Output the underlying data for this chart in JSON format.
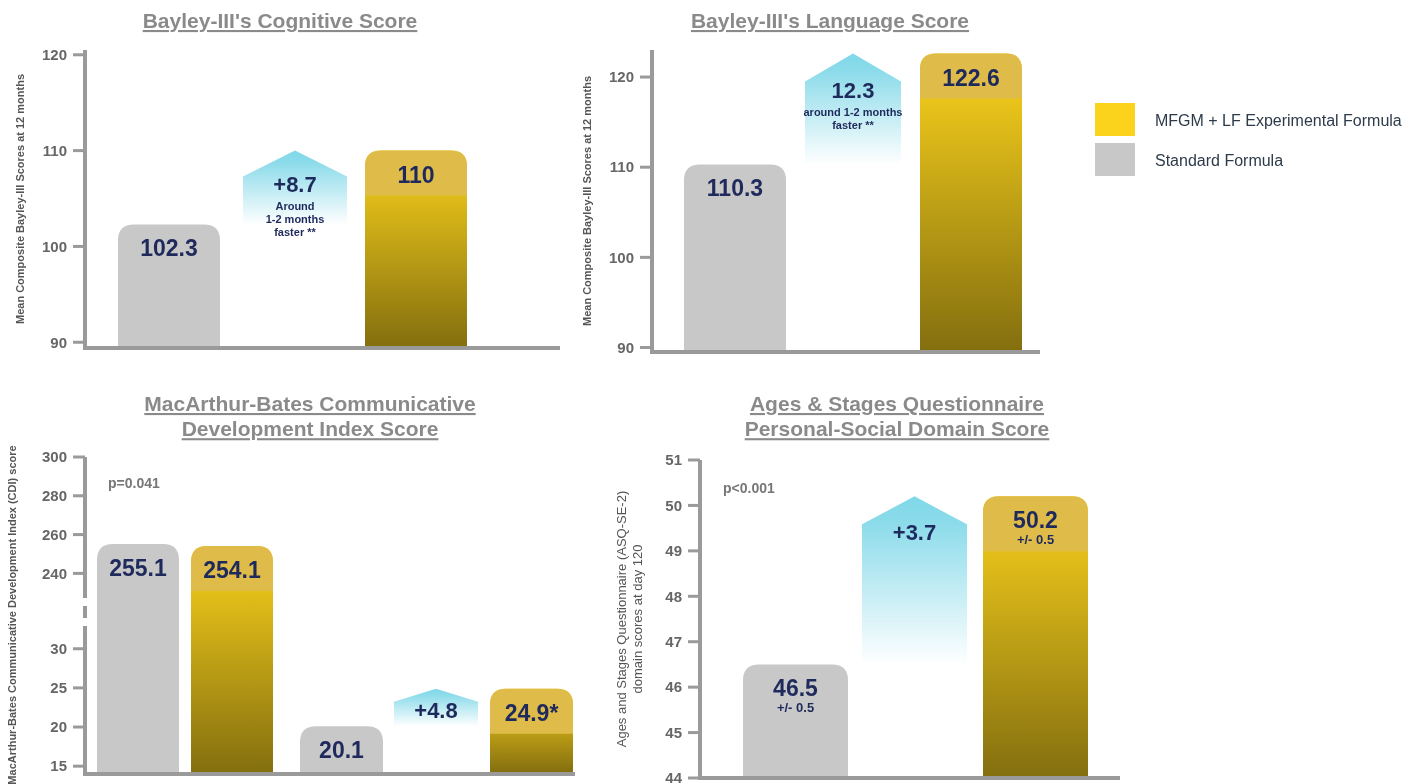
{
  "chart_data": [
    {
      "type": "bar",
      "title": "Bayley-III's Cognitive Score",
      "ylabel": "Mean Composite Bayley-III Scores at 12 months",
      "categories": [
        null
      ],
      "ylim": [
        89.4,
        120.5
      ],
      "yticks": [
        90,
        100,
        110,
        120
      ],
      "data_labels": true,
      "series": [
        {
          "color": "#c8c8c8",
          "values": [
            102.3
          ]
        },
        {
          "color": "#fbd31c",
          "values": [
            110
          ]
        }
      ],
      "annotations": [
        "+8.7",
        "Around\n1-2 months\nfaster **"
      ]
    },
    {
      "type": "bar",
      "title": "Bayley-III's Language Score",
      "ylabel": "Mean Composite Bayley-III Scores at 12 months",
      "categories": [
        null
      ],
      "ylim": [
        89.5,
        123
      ],
      "yticks": [
        90,
        100,
        110,
        120
      ],
      "data_labels": true,
      "legend": "right",
      "series": [
        {
          "name": "Standard Formula",
          "color": "#c8c8c8",
          "values": [
            110.3
          ]
        },
        {
          "name": "MFGM + LF Experimental Formula",
          "color": "#fbd31c",
          "values": [
            122.6
          ]
        }
      ],
      "annotations": [
        "12.3",
        "around 1-2 months\nfaster **"
      ]
    },
    {
      "type": "bar",
      "title": "MacArthur-Bates Communicative Development Index Score",
      "ylabel": "MacArthur-Bates Communicative Development Index (CDI) score",
      "categories": [
        null
      ],
      "ylim": [
        233.5,
        300
      ],
      "yticks": [
        240,
        260,
        280,
        300
      ],
      "series": [
        {
          "color": "#c8c8c8",
          "values": [
            255.1
          ],
          "value_labels": [
            "255.1"
          ]
        },
        {
          "color": "#fbd31c",
          "values": [
            254.1
          ],
          "value_labels": [
            "254.1"
          ]
        }
      ],
      "annotations": [
        "p=0.041"
      ]
    },
    {
      "type": "bar",
      "categories": [
        null
      ],
      "ylim": [
        14,
        31.5
      ],
      "yticks": [
        15,
        20,
        25,
        30
      ],
      "series": [
        {
          "color": "#c8c8c8",
          "values": [
            20.1
          ],
          "value_labels": [
            "20.1"
          ]
        },
        {
          "color": "#fbd31c",
          "values": [
            24.9
          ],
          "value_labels": [
            "24.9*"
          ]
        }
      ],
      "annotations": [
        "+4.8"
      ]
    },
    {
      "type": "bar",
      "title": "Ages & Stages Questionnaire Personal-Social Domain Score",
      "ylabel": "Ages and Stages Questionnaire (ASQ-SE-2) domain scores at day 120",
      "categories": [
        null
      ],
      "ylim": [
        44,
        51
      ],
      "yticks": [
        44,
        45,
        46,
        47,
        48,
        49,
        50,
        51
      ],
      "series": [
        {
          "color": "#c8c8c8",
          "values": [
            46.5
          ],
          "value_labels": [
            "46.5\n+/- 0.5"
          ]
        },
        {
          "color": "#fbd31c",
          "values": [
            50.2
          ],
          "value_labels": [
            "50.2\n+/- 0.5"
          ]
        }
      ],
      "annotations": [
        "p<0.001",
        "+3.7"
      ]
    }
  ]
}
